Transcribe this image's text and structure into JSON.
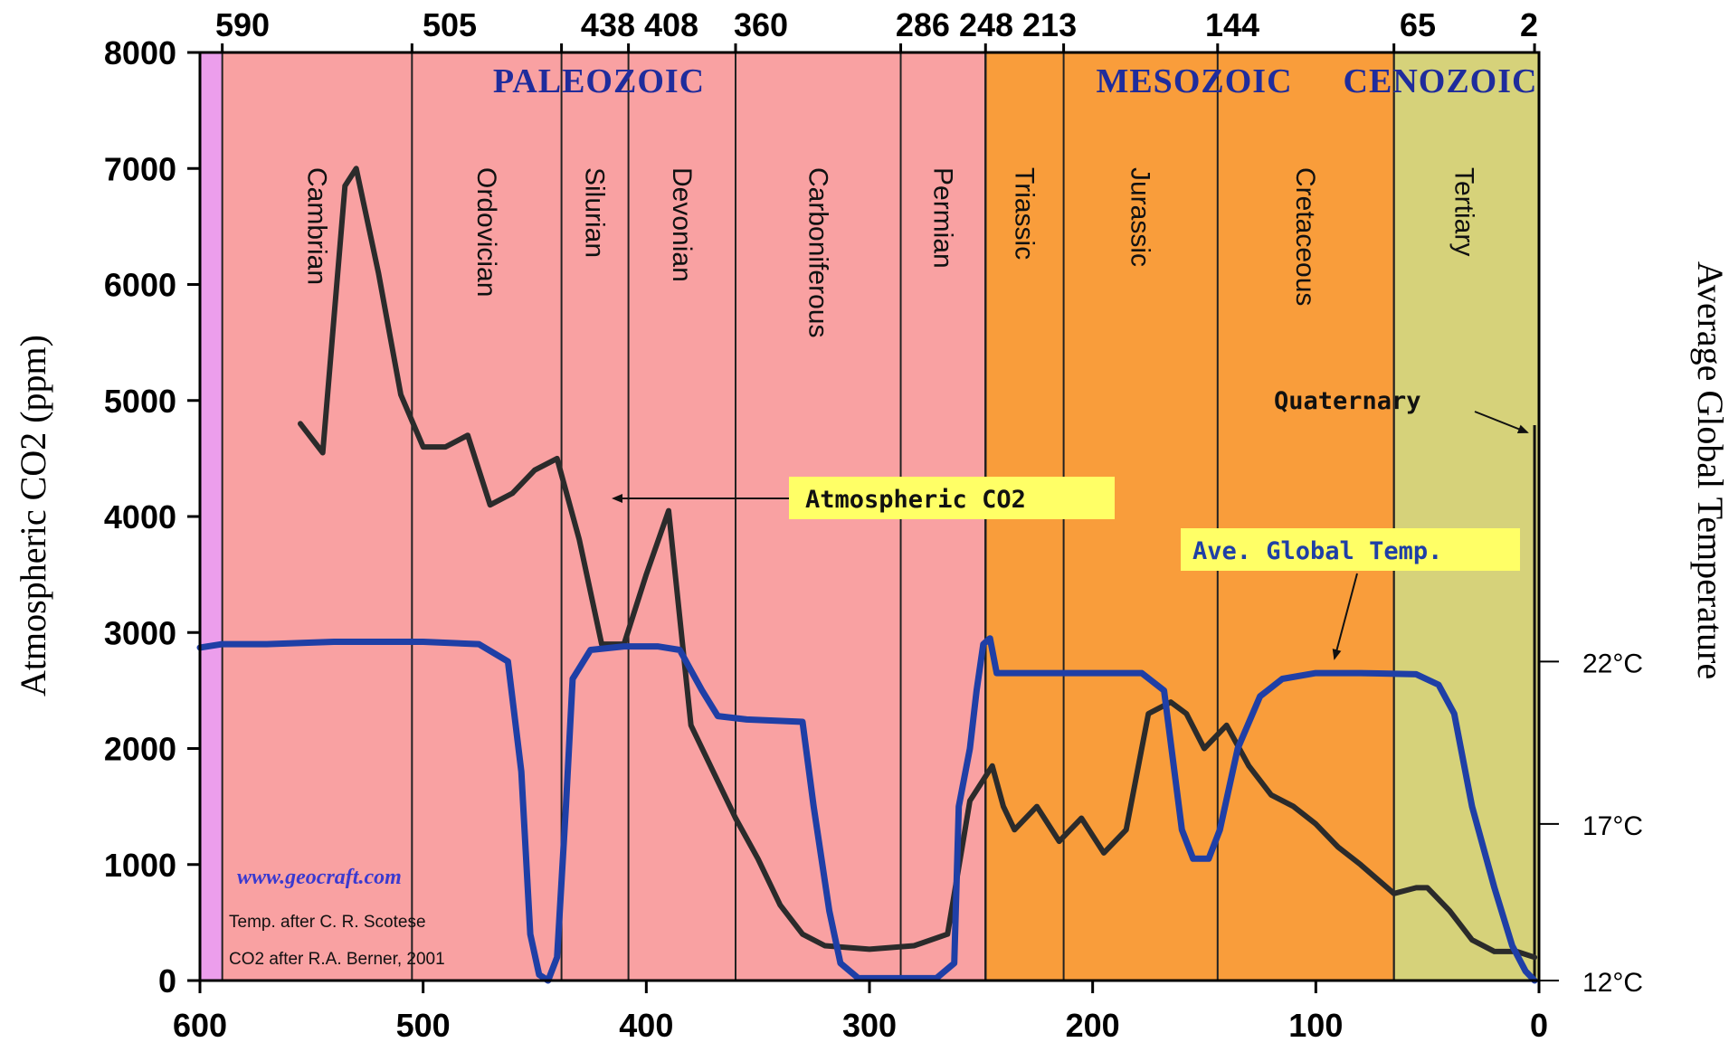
{
  "chart_data": {
    "type": "line",
    "xlabel": "",
    "ylabel": "Atmospheric CO2 (ppm)",
    "y2label": "Average Global Temperature",
    "x_axis_direction": "reversed",
    "xlim": [
      600,
      0
    ],
    "ylim": [
      0,
      8000
    ],
    "x_ticks": [
      600,
      500,
      400,
      300,
      200,
      100,
      0
    ],
    "y_ticks": [
      0,
      1000,
      2000,
      3000,
      4000,
      5000,
      6000,
      7000,
      8000
    ],
    "y2_ticks": [
      {
        "label": "12°C",
        "co2_equiv": 0
      },
      {
        "label": "17°C",
        "co2_equiv": 1350
      },
      {
        "label": "22°C",
        "co2_equiv": 2750
      }
    ],
    "top_ticks": [
      590,
      505,
      438,
      408,
      360,
      286,
      248,
      213,
      144,
      65,
      2
    ],
    "top_tick_labels": [
      "590",
      "505",
      "438 408",
      "360",
      "286 248 213",
      "144",
      "65",
      "2"
    ],
    "grid": false,
    "eras": [
      {
        "name": "PALEOZOIC",
        "start": 590,
        "end": 248,
        "color": "#f9a1a2"
      },
      {
        "name": "MESOZOIC",
        "start": 248,
        "end": 65,
        "color": "#f99d3b"
      },
      {
        "name": "CENOZOIC",
        "start": 65,
        "end": 0,
        "color": "#d6d27a"
      },
      {
        "name": "",
        "start": 600,
        "end": 590,
        "color": "#ec9eec"
      }
    ],
    "periods": [
      {
        "name": "Cambrian",
        "start": 590,
        "end": 505
      },
      {
        "name": "Ordovician",
        "start": 505,
        "end": 438
      },
      {
        "name": "Silurian",
        "start": 438,
        "end": 408
      },
      {
        "name": "Devonian",
        "start": 408,
        "end": 360
      },
      {
        "name": "Carboniferous",
        "start": 360,
        "end": 286
      },
      {
        "name": "Permian",
        "start": 286,
        "end": 248
      },
      {
        "name": "Triassic",
        "start": 248,
        "end": 213
      },
      {
        "name": "Jurassic",
        "start": 213,
        "end": 144
      },
      {
        "name": "Cretaceous",
        "start": 144,
        "end": 65
      },
      {
        "name": "Tertiary",
        "start": 65,
        "end": 2
      }
    ],
    "series": [
      {
        "name": "Atmospheric CO2",
        "color": "#2b2b2b",
        "points": [
          [
            555,
            4800
          ],
          [
            545,
            4550
          ],
          [
            535,
            6850
          ],
          [
            530,
            7000
          ],
          [
            520,
            6100
          ],
          [
            510,
            5050
          ],
          [
            500,
            4600
          ],
          [
            490,
            4600
          ],
          [
            480,
            4700
          ],
          [
            470,
            4100
          ],
          [
            460,
            4200
          ],
          [
            450,
            4400
          ],
          [
            440,
            4500
          ],
          [
            430,
            3800
          ],
          [
            420,
            2900
          ],
          [
            410,
            2900
          ],
          [
            400,
            3500
          ],
          [
            390,
            4050
          ],
          [
            380,
            2200
          ],
          [
            370,
            1800
          ],
          [
            360,
            1400
          ],
          [
            350,
            1050
          ],
          [
            340,
            650
          ],
          [
            330,
            400
          ],
          [
            320,
            300
          ],
          [
            300,
            270
          ],
          [
            280,
            300
          ],
          [
            265,
            400
          ],
          [
            255,
            1550
          ],
          [
            245,
            1850
          ],
          [
            240,
            1500
          ],
          [
            235,
            1300
          ],
          [
            225,
            1500
          ],
          [
            215,
            1200
          ],
          [
            205,
            1400
          ],
          [
            195,
            1100
          ],
          [
            185,
            1300
          ],
          [
            175,
            2300
          ],
          [
            165,
            2400
          ],
          [
            158,
            2300
          ],
          [
            150,
            2000
          ],
          [
            140,
            2200
          ],
          [
            130,
            1850
          ],
          [
            120,
            1600
          ],
          [
            110,
            1500
          ],
          [
            100,
            1350
          ],
          [
            90,
            1150
          ],
          [
            80,
            1000
          ],
          [
            65,
            750
          ],
          [
            55,
            800
          ],
          [
            50,
            800
          ],
          [
            40,
            600
          ],
          [
            30,
            350
          ],
          [
            20,
            250
          ],
          [
            10,
            250
          ],
          [
            2,
            200
          ]
        ]
      },
      {
        "name": "Ave. Global Temp.",
        "color": "#1f3fa6",
        "points": [
          [
            600,
            2870
          ],
          [
            590,
            2900
          ],
          [
            570,
            2900
          ],
          [
            540,
            2920
          ],
          [
            520,
            2920
          ],
          [
            500,
            2920
          ],
          [
            475,
            2900
          ],
          [
            462,
            2750
          ],
          [
            456,
            1800
          ],
          [
            452,
            400
          ],
          [
            448,
            50
          ],
          [
            444,
            0
          ],
          [
            440,
            200
          ],
          [
            436,
            1500
          ],
          [
            433,
            2600
          ],
          [
            425,
            2850
          ],
          [
            410,
            2880
          ],
          [
            395,
            2880
          ],
          [
            385,
            2850
          ],
          [
            375,
            2500
          ],
          [
            368,
            2280
          ],
          [
            355,
            2250
          ],
          [
            330,
            2230
          ],
          [
            325,
            1500
          ],
          [
            318,
            600
          ],
          [
            313,
            150
          ],
          [
            305,
            20
          ],
          [
            290,
            20
          ],
          [
            270,
            20
          ],
          [
            262,
            150
          ],
          [
            260,
            1500
          ],
          [
            255,
            2000
          ],
          [
            252,
            2500
          ],
          [
            249,
            2900
          ],
          [
            246,
            2950
          ],
          [
            243,
            2650
          ],
          [
            230,
            2650
          ],
          [
            200,
            2650
          ],
          [
            178,
            2650
          ],
          [
            168,
            2500
          ],
          [
            160,
            1300
          ],
          [
            155,
            1050
          ],
          [
            148,
            1050
          ],
          [
            143,
            1300
          ],
          [
            135,
            2000
          ],
          [
            125,
            2450
          ],
          [
            115,
            2600
          ],
          [
            100,
            2650
          ],
          [
            80,
            2650
          ],
          [
            55,
            2640
          ],
          [
            45,
            2550
          ],
          [
            38,
            2300
          ],
          [
            30,
            1500
          ],
          [
            20,
            800
          ],
          [
            12,
            300
          ],
          [
            6,
            80
          ],
          [
            2,
            0
          ]
        ]
      }
    ],
    "annotations": [
      {
        "text": "Atmospheric CO2",
        "bg": "#ffff66",
        "color": "#111111"
      },
      {
        "text": "Ave. Global Temp.",
        "bg": "#ffff66",
        "color": "#1f3fa6"
      },
      {
        "text": "Quaternary",
        "color": "#111111"
      }
    ],
    "credits": {
      "url": "www.geocraft.com",
      "temp_source": "Temp. after C. R. Scotese",
      "co2_source": "CO2 after R.A. Berner, 2001"
    }
  }
}
